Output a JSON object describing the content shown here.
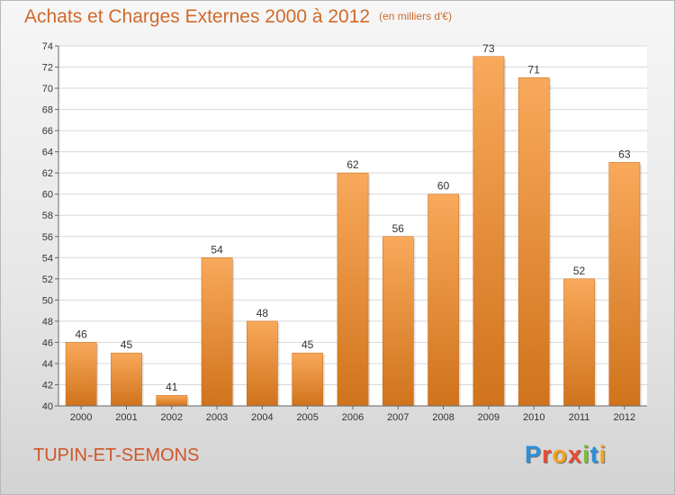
{
  "header": {
    "title": "Achats et Charges Externes 2000 à 2012",
    "subtitle": "(en milliers d'€)"
  },
  "footer": {
    "place": "TUPIN-ET-SEMONS",
    "logo_letters": [
      {
        "char": "P",
        "color": "#2f8fd8"
      },
      {
        "char": "r",
        "color": "#e94b36"
      },
      {
        "char": "o",
        "color": "#f3a21c"
      },
      {
        "char": "x",
        "color": "#e94b36"
      },
      {
        "char": "i",
        "color": "#7cbe3a"
      },
      {
        "char": "t",
        "color": "#2f8fd8"
      },
      {
        "char": "i",
        "color": "#f3a21c"
      }
    ]
  },
  "colors": {
    "bar_light": "#f8a95a",
    "bar_dark": "#d0731c",
    "title": "#d06a2a",
    "place": "#d0562a",
    "grid": "#d8d8d8"
  },
  "chart_data": {
    "type": "bar",
    "categories": [
      "2000",
      "2001",
      "2002",
      "2003",
      "2004",
      "2005",
      "2006",
      "2007",
      "2008",
      "2009",
      "2010",
      "2011",
      "2012"
    ],
    "values": [
      46,
      45,
      41,
      54,
      48,
      45,
      62,
      56,
      60,
      73,
      71,
      52,
      63
    ],
    "ylim": [
      40,
      74
    ],
    "yticks": [
      40,
      42,
      44,
      46,
      48,
      50,
      52,
      54,
      56,
      58,
      60,
      62,
      64,
      66,
      68,
      70,
      72,
      74
    ],
    "grid": true,
    "title": "Achats et Charges Externes 2000 à 2012",
    "subtitle": "(en milliers d'€)"
  }
}
